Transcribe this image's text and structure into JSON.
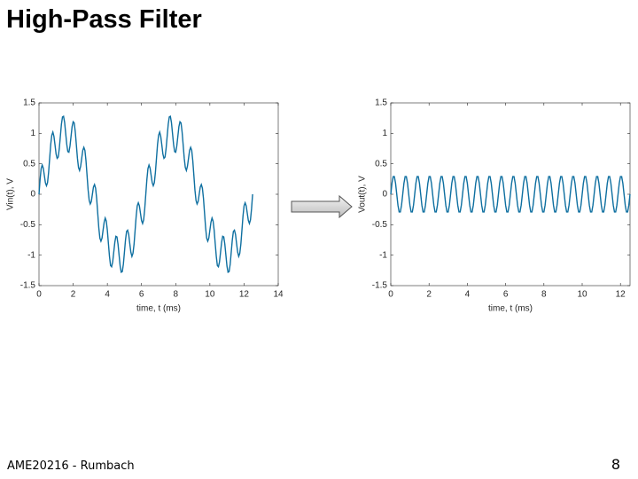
{
  "slide": {
    "title": "High-Pass Filter",
    "footer": "AME20216 - Rumbach",
    "page_number": 8
  },
  "chart_data": [
    {
      "type": "line",
      "xlabel": "time, t (ms)",
      "ylabel": "Vin(t), V",
      "color": "#0e6fa0",
      "xlim": [
        0,
        14
      ],
      "xticks": [
        0,
        2,
        4,
        6,
        8,
        10,
        12,
        14
      ],
      "ylim": [
        -1.5,
        1.5
      ],
      "yticks": [
        -1.5,
        -1,
        -0.5,
        0,
        0.5,
        1,
        1.5
      ],
      "x": [
        0,
        0.0625,
        0.125,
        0.1875,
        0.25,
        0.3125,
        0.375,
        0.4375,
        0.5,
        0.5625,
        0.625,
        0.6875,
        0.75,
        0.8125,
        0.875,
        0.9375,
        1,
        1.0625,
        1.125,
        1.1875,
        1.25,
        1.3125,
        1.375,
        1.4375,
        1.5,
        1.5625,
        1.625,
        1.6875,
        1.75,
        1.8125,
        1.875,
        1.9375,
        2,
        2.0625,
        2.125,
        2.1875,
        2.25,
        2.3125,
        2.375,
        2.4375,
        2.5,
        2.5625,
        2.625,
        2.6875,
        2.75,
        2.8125,
        2.875,
        2.9375,
        3,
        3.0625,
        3.125,
        3.1875,
        3.25,
        3.3125,
        3.375,
        3.4375,
        3.5,
        3.5625,
        3.625,
        3.6875,
        3.75,
        3.8125,
        3.875,
        3.9375,
        4,
        4.0625,
        4.125,
        4.1875,
        4.25,
        4.3125,
        4.375,
        4.4375,
        4.5,
        4.5625,
        4.625,
        4.6875,
        4.75,
        4.8125,
        4.875,
        4.9375,
        5,
        5.0625,
        5.125,
        5.1875,
        5.25,
        5.3125,
        5.375,
        5.4375,
        5.5,
        5.5625,
        5.625,
        5.6875,
        5.75,
        5.8125,
        5.875,
        5.9375,
        6,
        6.0625,
        6.125,
        6.1875,
        6.25,
        6.3125,
        6.375,
        6.4375,
        6.5,
        6.5625,
        6.625,
        6.6875,
        6.75,
        6.8125,
        6.875,
        6.9375,
        7,
        7.0625,
        7.125,
        7.1875,
        7.25,
        7.3125,
        7.375,
        7.4375,
        7.5,
        7.5625,
        7.625,
        7.6875,
        7.75,
        7.8125,
        7.875,
        7.9375,
        8,
        8.0625,
        8.125,
        8.1875,
        8.25,
        8.3125,
        8.375,
        8.4375,
        8.5,
        8.5625,
        8.625,
        8.6875,
        8.75,
        8.8125,
        8.875,
        8.9375,
        9,
        9.0625,
        9.125,
        9.1875,
        9.25,
        9.3125,
        9.375,
        9.4375,
        9.5,
        9.5625,
        9.625,
        9.6875,
        9.75,
        9.8125,
        9.875,
        9.9375,
        10,
        10.0625,
        10.125,
        10.1875,
        10.25,
        10.3125,
        10.375,
        10.4375,
        10.5,
        10.5625,
        10.625,
        10.6875,
        10.75,
        10.8125,
        10.875,
        10.9375,
        11,
        11.0625,
        11.125,
        11.1875,
        11.25,
        11.3125,
        11.375,
        11.4375,
        11.5,
        11.5625,
        11.625,
        11.6875,
        11.75,
        11.8125,
        11.875,
        11.9375,
        12,
        12.0625,
        12.125,
        12.1875,
        12.25,
        12.3125,
        12.375,
        12.4375,
        12.5
      ],
      "values": [
        0,
        0.24,
        0.42,
        0.48,
        0.43,
        0.31,
        0.19,
        0.14,
        0.19,
        0.36,
        0.59,
        0.82,
        0.97,
        1.02,
        0.95,
        0.81,
        0.66,
        0.59,
        0.61,
        0.75,
        0.95,
        1.15,
        1.27,
        1.28,
        1.18,
        1,
        0.82,
        0.7,
        0.69,
        0.79,
        0.95,
        1.11,
        1.19,
        1.17,
        1.02,
        0.81,
        0.59,
        0.44,
        0.39,
        0.46,
        0.59,
        0.72,
        0.77,
        0.72,
        0.55,
        0.31,
        0.07,
        -0.1,
        -0.16,
        -0.12,
        0,
        0.12,
        0.16,
        0.1,
        -0.07,
        -0.31,
        -0.55,
        -0.72,
        -0.77,
        -0.72,
        -0.59,
        -0.46,
        -0.39,
        -0.44,
        -0.59,
        -0.81,
        -1.02,
        -1.17,
        -1.19,
        -1.11,
        -0.95,
        -0.79,
        -0.69,
        -0.7,
        -0.82,
        -1,
        -1.18,
        -1.28,
        -1.27,
        -1.15,
        -0.95,
        -0.75,
        -0.61,
        -0.59,
        -0.66,
        -0.81,
        -0.95,
        -1.02,
        -0.97,
        -0.82,
        -0.59,
        -0.36,
        -0.19,
        -0.14,
        -0.19,
        -0.31,
        -0.43,
        -0.48,
        -0.42,
        -0.24,
        0,
        0.24,
        0.42,
        0.48,
        0.43,
        0.31,
        0.19,
        0.14,
        0.19,
        0.36,
        0.59,
        0.82,
        0.97,
        1.02,
        0.95,
        0.81,
        0.66,
        0.59,
        0.61,
        0.75,
        0.95,
        1.15,
        1.27,
        1.28,
        1.18,
        1,
        0.82,
        0.7,
        0.69,
        0.79,
        0.95,
        1.11,
        1.19,
        1.17,
        1.02,
        0.81,
        0.59,
        0.44,
        0.39,
        0.46,
        0.59,
        0.72,
        0.77,
        0.72,
        0.55,
        0.31,
        0.07,
        -0.1,
        -0.16,
        -0.12,
        0,
        0.12,
        0.16,
        0.1,
        -0.07,
        -0.31,
        -0.55,
        -0.72,
        -0.77,
        -0.72,
        -0.59,
        -0.46,
        -0.39,
        -0.44,
        -0.59,
        -0.81,
        -1.02,
        -1.17,
        -1.19,
        -1.11,
        -0.95,
        -0.79,
        -0.69,
        -0.7,
        -0.82,
        -1,
        -1.18,
        -1.28,
        -1.27,
        -1.15,
        -0.95,
        -0.75,
        -0.61,
        -0.59,
        -0.66,
        -0.81,
        -0.95,
        -1.02,
        -0.97,
        -0.82,
        -0.59,
        -0.36,
        -0.19,
        -0.14,
        -0.19,
        -0.31,
        -0.43,
        -0.48,
        -0.42,
        -0.24,
        0
      ]
    },
    {
      "type": "line",
      "xlabel": "time, t (ms)",
      "ylabel": "Vout(t), V",
      "color": "#0e6fa0",
      "xlim": [
        0,
        12.5
      ],
      "xticks": [
        0,
        2,
        4,
        6,
        8,
        10,
        12
      ],
      "ylim": [
        -1.5,
        1.5
      ],
      "yticks": [
        -1.5,
        -1,
        -0.5,
        0,
        0.5,
        1,
        1.5
      ],
      "x": [
        0,
        0.0625,
        0.125,
        0.1875,
        0.25,
        0.3125,
        0.375,
        0.4375,
        0.5,
        0.5625,
        0.625,
        0.6875,
        0.75,
        0.8125,
        0.875,
        0.9375,
        1,
        1.0625,
        1.125,
        1.1875,
        1.25,
        1.3125,
        1.375,
        1.4375,
        1.5,
        1.5625,
        1.625,
        1.6875,
        1.75,
        1.8125,
        1.875,
        1.9375,
        2,
        2.0625,
        2.125,
        2.1875,
        2.25,
        2.3125,
        2.375,
        2.4375,
        2.5,
        2.5625,
        2.625,
        2.6875,
        2.75,
        2.8125,
        2.875,
        2.9375,
        3,
        3.0625,
        3.125,
        3.1875,
        3.25,
        3.3125,
        3.375,
        3.4375,
        3.5,
        3.5625,
        3.625,
        3.6875,
        3.75,
        3.8125,
        3.875,
        3.9375,
        4,
        4.0625,
        4.125,
        4.1875,
        4.25,
        4.3125,
        4.375,
        4.4375,
        4.5,
        4.5625,
        4.625,
        4.6875,
        4.75,
        4.8125,
        4.875,
        4.9375,
        5,
        5.0625,
        5.125,
        5.1875,
        5.25,
        5.3125,
        5.375,
        5.4375,
        5.5,
        5.5625,
        5.625,
        5.6875,
        5.75,
        5.8125,
        5.875,
        5.9375,
        6,
        6.0625,
        6.125,
        6.1875,
        6.25,
        6.3125,
        6.375,
        6.4375,
        6.5,
        6.5625,
        6.625,
        6.6875,
        6.75,
        6.8125,
        6.875,
        6.9375,
        7,
        7.0625,
        7.125,
        7.1875,
        7.25,
        7.3125,
        7.375,
        7.4375,
        7.5,
        7.5625,
        7.625,
        7.6875,
        7.75,
        7.8125,
        7.875,
        7.9375,
        8,
        8.0625,
        8.125,
        8.1875,
        8.25,
        8.3125,
        8.375,
        8.4375,
        8.5,
        8.5625,
        8.625,
        8.6875,
        8.75,
        8.8125,
        8.875,
        8.9375,
        9,
        9.0625,
        9.125,
        9.1875,
        9.25,
        9.3125,
        9.375,
        9.4375,
        9.5,
        9.5625,
        9.625,
        9.6875,
        9.75,
        9.8125,
        9.875,
        9.9375,
        10,
        10.0625,
        10.125,
        10.1875,
        10.25,
        10.3125,
        10.375,
        10.4375,
        10.5,
        10.5625,
        10.625,
        10.6875,
        10.75,
        10.8125,
        10.875,
        10.9375,
        11,
        11.0625,
        11.125,
        11.1875,
        11.25,
        11.3125,
        11.375,
        11.4375,
        11.5,
        11.5625,
        11.625,
        11.6875,
        11.75,
        11.8125,
        11.875,
        11.9375,
        12,
        12.0625,
        12.125,
        12.1875,
        12.25,
        12.3125,
        12.375,
        12.4375,
        12.5
      ],
      "values": [
        0,
        0.18,
        0.29,
        0.29,
        0.18,
        0,
        -0.18,
        -0.29,
        -0.29,
        -0.18,
        0,
        0.18,
        0.29,
        0.29,
        0.18,
        0,
        -0.18,
        -0.29,
        -0.29,
        -0.18,
        0,
        0.18,
        0.29,
        0.29,
        0.18,
        0,
        -0.18,
        -0.29,
        -0.29,
        -0.18,
        0,
        0.18,
        0.29,
        0.29,
        0.18,
        0,
        -0.18,
        -0.29,
        -0.29,
        -0.18,
        0,
        0.18,
        0.29,
        0.29,
        0.18,
        0,
        -0.18,
        -0.29,
        -0.29,
        -0.18,
        0,
        0.18,
        0.29,
        0.29,
        0.18,
        0,
        -0.18,
        -0.29,
        -0.29,
        -0.18,
        0,
        0.18,
        0.29,
        0.29,
        0.18,
        0,
        -0.18,
        -0.29,
        -0.29,
        -0.18,
        0,
        0.18,
        0.29,
        0.29,
        0.18,
        0,
        -0.18,
        -0.29,
        -0.29,
        -0.18,
        0,
        0.18,
        0.29,
        0.29,
        0.18,
        0,
        -0.18,
        -0.29,
        -0.29,
        -0.18,
        0,
        0.18,
        0.29,
        0.29,
        0.18,
        0,
        -0.18,
        -0.29,
        -0.29,
        -0.18,
        0,
        0.18,
        0.29,
        0.29,
        0.18,
        0,
        -0.18,
        -0.29,
        -0.29,
        -0.18,
        0,
        0.18,
        0.29,
        0.29,
        0.18,
        0,
        -0.18,
        -0.29,
        -0.29,
        -0.18,
        0,
        0.18,
        0.29,
        0.29,
        0.18,
        0,
        -0.18,
        -0.29,
        -0.29,
        -0.18,
        0,
        0.18,
        0.29,
        0.29,
        0.18,
        0,
        -0.18,
        -0.29,
        -0.29,
        -0.18,
        0,
        0.18,
        0.29,
        0.29,
        0.18,
        0,
        -0.18,
        -0.29,
        -0.29,
        -0.18,
        0,
        0.18,
        0.29,
        0.29,
        0.18,
        0,
        -0.18,
        -0.29,
        -0.29,
        -0.18,
        0,
        0.18,
        0.29,
        0.29,
        0.18,
        0,
        -0.18,
        -0.29,
        -0.29,
        -0.18,
        0,
        0.18,
        0.29,
        0.29,
        0.18,
        0,
        -0.18,
        -0.29,
        -0.29,
        -0.18,
        0,
        0.18,
        0.29,
        0.29,
        0.18,
        0,
        -0.18,
        -0.29,
        -0.29,
        -0.18,
        0,
        0.18,
        0.29,
        0.29,
        0.18,
        0,
        -0.18,
        -0.29,
        -0.29,
        -0.18,
        0
      ]
    }
  ]
}
